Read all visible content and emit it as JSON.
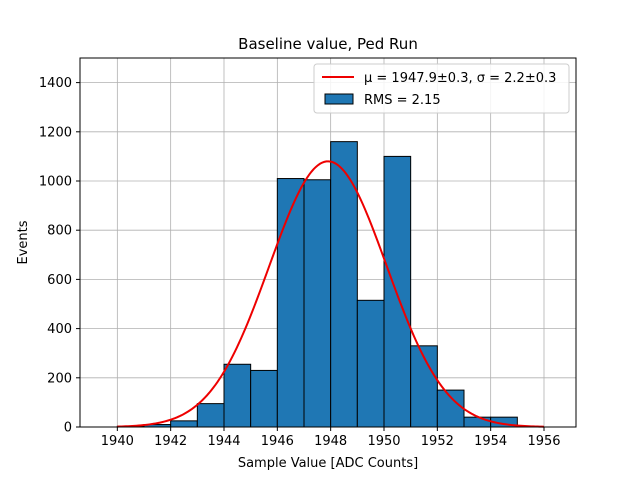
{
  "chart_data": {
    "type": "bar",
    "title": "Baseline value, Ped Run",
    "xlabel": "Sample Value [ADC Counts]",
    "ylabel": "Events",
    "xlim": [
      1938.6,
      1957.2
    ],
    "ylim": [
      0,
      1500
    ],
    "xticks": [
      "1940",
      "1942",
      "1944",
      "1946",
      "1948",
      "1950",
      "1952",
      "1954",
      "1956"
    ],
    "yticks": [
      "0",
      "200",
      "400",
      "600",
      "800",
      "1000",
      "1200",
      "1400"
    ],
    "grid": true,
    "legend_position": "top-right",
    "bins": [
      {
        "left": 1940.0,
        "right": 1941.0,
        "value": 3
      },
      {
        "left": 1941.0,
        "right": 1942.0,
        "value": 10
      },
      {
        "left": 1942.0,
        "right": 1943.0,
        "value": 25
      },
      {
        "left": 1943.0,
        "right": 1944.0,
        "value": 95
      },
      {
        "left": 1944.0,
        "right": 1945.0,
        "value": 255
      },
      {
        "left": 1945.0,
        "right": 1946.0,
        "value": 230
      },
      {
        "left": 1946.0,
        "right": 1947.0,
        "value": 1010
      },
      {
        "left": 1947.0,
        "right": 1948.0,
        "value": 1005
      },
      {
        "left": 1948.0,
        "right": 1949.0,
        "value": 1160
      },
      {
        "left": 1949.0,
        "right": 1950.0,
        "value": 515
      },
      {
        "left": 1950.0,
        "right": 1951.0,
        "value": 1100
      },
      {
        "left": 1951.0,
        "right": 1952.0,
        "value": 330
      },
      {
        "left": 1952.0,
        "right": 1953.0,
        "value": 150
      },
      {
        "left": 1953.0,
        "right": 1954.0,
        "value": 40
      },
      {
        "left": 1954.0,
        "right": 1955.0,
        "value": 40
      }
    ],
    "fit": {
      "mu": 1947.9,
      "sigma": 2.2,
      "amplitude": 1080,
      "x_range": [
        1940,
        1956
      ]
    },
    "legend": [
      {
        "label": "μ = 1947.9±0.3, σ = 2.2±0.3",
        "kind": "line"
      },
      {
        "label": "RMS = 2.15",
        "kind": "patch"
      }
    ],
    "colors": {
      "bar_fill": "#1f77b4",
      "bar_edge": "#000000",
      "fit_line": "#ee0000",
      "grid": "#b0b0b0"
    }
  }
}
